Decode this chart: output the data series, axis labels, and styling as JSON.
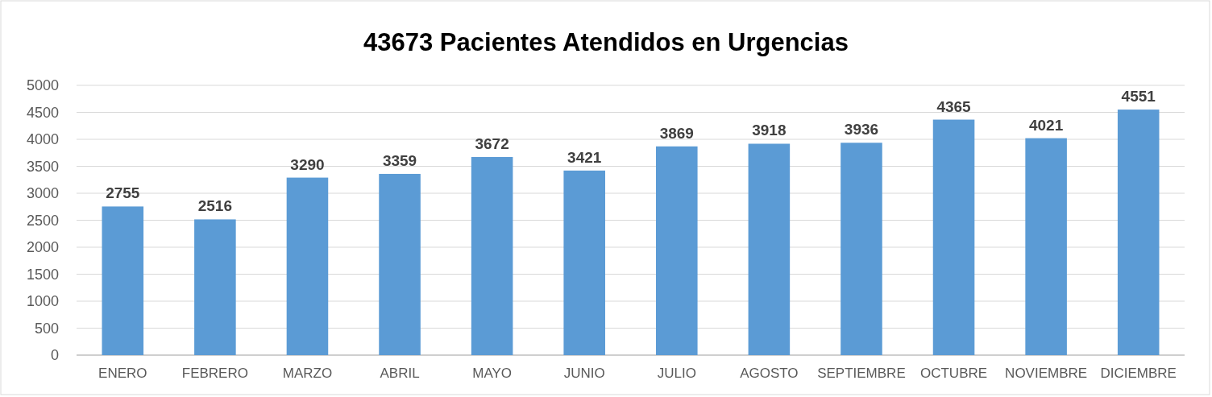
{
  "chart_data": {
    "type": "bar",
    "title": "43673 Pacientes Atendidos en Urgencias",
    "categories": [
      "ENERO",
      "FEBRERO",
      "MARZO",
      "ABRIL",
      "MAYO",
      "JUNIO",
      "JULIO",
      "AGOSTO",
      "SEPTIEMBRE",
      "OCTUBRE",
      "NOVIEMBRE",
      "DICIEMBRE"
    ],
    "values": [
      2755,
      2516,
      3290,
      3359,
      3672,
      3421,
      3869,
      3918,
      3936,
      4365,
      4021,
      4551
    ],
    "color": "#5b9bd5",
    "ylim": [
      0,
      5000
    ],
    "yticks": [
      0,
      500,
      1000,
      1500,
      2000,
      2500,
      3000,
      3500,
      4000,
      4500,
      5000
    ],
    "grid": "y",
    "data_labels": true
  }
}
